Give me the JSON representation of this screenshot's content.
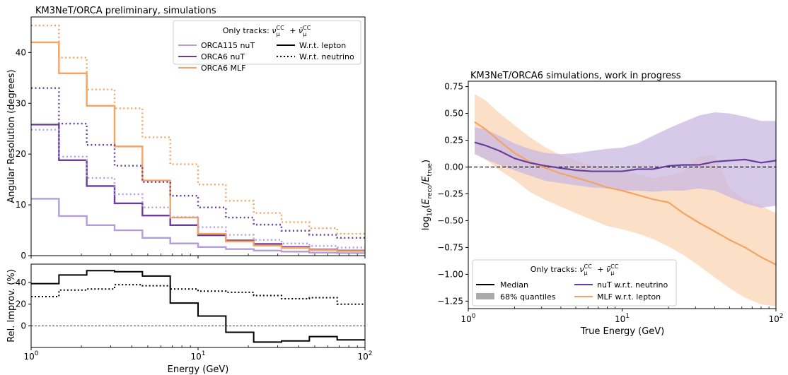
{
  "colors": {
    "orca115": "#b39ddb",
    "orca6_nut": "#6a3d9a",
    "orca6_mlf": "#f4a460",
    "black": "#000000",
    "band_purple": "#c9b8e0",
    "band_orange": "#fbd9bd"
  },
  "chart_data": [
    {
      "type": "line",
      "id": "left-top",
      "title": "KM3NeT/ORCA preliminary, simulations",
      "ylabel": "Angular Resolution (degrees)",
      "xscale": "log",
      "xlim": [
        1,
        100
      ],
      "ylim": [
        0,
        47
      ],
      "yticks": [
        0,
        10,
        20,
        30,
        40
      ],
      "bin_edges": [
        1,
        1.468,
        2.154,
        3.162,
        4.642,
        6.813,
        10,
        14.68,
        21.54,
        31.62,
        46.42,
        68.13,
        100
      ],
      "legend": {
        "title": "Only tracks: ν_μ^CC + ν̄_μ^CC",
        "entries": [
          "ORCA115 nuT",
          "ORCA6 nuT",
          "ORCA6 MLF",
          "W.r.t. lepton",
          "W.r.t. neutrino"
        ],
        "placement": "top-right"
      },
      "series": [
        {
          "color": "orca115",
          "dash": false,
          "values": [
            11.2,
            7.8,
            6.0,
            5.0,
            3.5,
            2.4,
            1.7,
            1.3,
            1.0,
            0.8,
            0.6,
            0.5
          ]
        },
        {
          "color": "orca6_nut",
          "dash": false,
          "values": [
            25.8,
            18.8,
            13.7,
            10.3,
            7.9,
            6.0,
            4.0,
            3.0,
            2.3,
            1.7,
            1.2,
            1.0
          ]
        },
        {
          "color": "orca6_mlf",
          "dash": false,
          "values": [
            42.0,
            35.9,
            29.5,
            21.5,
            14.8,
            7.5,
            4.3,
            2.8,
            2.0,
            1.5,
            1.1,
            0.9
          ]
        },
        {
          "color": "orca115",
          "dash": true,
          "values": [
            24.8,
            19.5,
            15.3,
            12.1,
            9.5,
            7.6,
            5.6,
            4.1,
            3.1,
            2.4,
            1.9,
            1.6
          ]
        },
        {
          "color": "orca6_nut",
          "dash": true,
          "values": [
            33.0,
            26.0,
            21.8,
            17.7,
            14.5,
            11.8,
            9.5,
            7.5,
            6.1,
            4.9,
            4.1,
            3.5
          ]
        },
        {
          "color": "orca6_mlf",
          "dash": true,
          "values": [
            45.3,
            39.0,
            32.7,
            29.0,
            23.3,
            18.0,
            14.0,
            10.8,
            8.4,
            6.6,
            5.4,
            4.3
          ]
        }
      ]
    },
    {
      "type": "line",
      "id": "left-bottom",
      "xlabel": "Energy (GeV)",
      "ylabel": "Rel. Improv. (%)",
      "xscale": "log",
      "xlim": [
        1,
        100
      ],
      "ylim": [
        -20,
        57
      ],
      "yticks": [
        0,
        20,
        40
      ],
      "xticks": [
        "10^0",
        "10^1",
        "10^2"
      ],
      "bin_edges": [
        1,
        1.468,
        2.154,
        3.162,
        4.642,
        6.813,
        10,
        14.68,
        21.54,
        31.62,
        46.42,
        68.13,
        100
      ],
      "series": [
        {
          "color": "black",
          "dash": false,
          "values": [
            39,
            47,
            51,
            50,
            46,
            21,
            9,
            -6,
            -15,
            -14,
            -10,
            -13
          ]
        },
        {
          "color": "black",
          "dash": true,
          "values": [
            27,
            33,
            34,
            38,
            37,
            34,
            32,
            31,
            28,
            25,
            26,
            20
          ]
        }
      ],
      "reference_line": 0
    },
    {
      "type": "area",
      "id": "right",
      "title": "KM3NeT/ORCA6 simulations, work in progress",
      "xlabel": "True Energy (GeV)",
      "ylabel": "log10(E_reco/E_true)",
      "xscale": "log",
      "xlim": [
        1,
        100
      ],
      "ylim": [
        -1.32,
        0.8
      ],
      "yticks": [
        -1.25,
        -1.0,
        -0.75,
        -0.5,
        -0.25,
        0.0,
        0.25,
        0.5,
        0.75
      ],
      "ytick_labels": [
        "−1.25",
        "−1.00",
        "−0.75",
        "−0.50",
        "−0.25",
        "0.00",
        "0.25",
        "0.50",
        "0.75"
      ],
      "xticks": [
        "10^0",
        "10^1",
        "10^2"
      ],
      "reference_line": 0,
      "legend": {
        "title": "Only tracks: ν_μ^CC + ν̄_μ^CC",
        "entries": [
          "Median",
          "68% quantiles",
          "nuT w.r.t. neutrino",
          "MLF w.r.t. lepton"
        ],
        "placement": "lower-left"
      },
      "x": [
        1.1,
        1.3,
        1.6,
        2.0,
        2.5,
        3.2,
        4.0,
        5.0,
        6.3,
        8.0,
        10,
        12.6,
        15.8,
        20,
        25,
        31.6,
        40,
        50,
        63,
        80,
        100
      ],
      "series": [
        {
          "color": "orca6_nut",
          "median": [
            0.23,
            0.2,
            0.15,
            0.08,
            0.04,
            0.01,
            -0.01,
            -0.03,
            -0.04,
            -0.04,
            -0.04,
            -0.02,
            -0.02,
            0.01,
            0.02,
            0.02,
            0.05,
            0.06,
            0.07,
            0.04,
            0.06
          ],
          "upper": [
            0.37,
            0.35,
            0.29,
            0.22,
            0.17,
            0.13,
            0.12,
            0.13,
            0.15,
            0.17,
            0.18,
            0.22,
            0.29,
            0.36,
            0.42,
            0.48,
            0.51,
            0.5,
            0.47,
            0.43,
            0.43
          ],
          "lower": [
            0.12,
            0.07,
            0.02,
            -0.03,
            -0.08,
            -0.13,
            -0.15,
            -0.17,
            -0.19,
            -0.2,
            -0.22,
            -0.22,
            -0.23,
            -0.22,
            -0.22,
            -0.2,
            -0.22,
            -0.28,
            -0.34,
            -0.38,
            -0.36
          ]
        },
        {
          "color": "orca6_mlf",
          "median": [
            0.42,
            0.35,
            0.24,
            0.13,
            0.05,
            -0.01,
            -0.06,
            -0.1,
            -0.14,
            -0.19,
            -0.22,
            -0.26,
            -0.3,
            -0.33,
            -0.43,
            -0.52,
            -0.6,
            -0.68,
            -0.75,
            -0.84,
            -0.91
          ],
          "upper": [
            0.68,
            0.62,
            0.5,
            0.39,
            0.28,
            0.18,
            0.11,
            0.06,
            0.02,
            0.0,
            -0.03,
            -0.07,
            -0.1,
            -0.08,
            -0.04,
            0.1,
            0.11,
            -0.2,
            -0.3,
            -0.36,
            -0.43
          ],
          "lower": [
            0.14,
            0.07,
            -0.03,
            -0.12,
            -0.23,
            -0.31,
            -0.37,
            -0.43,
            -0.49,
            -0.55,
            -0.58,
            -0.62,
            -0.67,
            -0.74,
            -0.82,
            -0.92,
            -1.03,
            -1.13,
            -1.22,
            -1.28,
            -1.3
          ]
        }
      ]
    }
  ]
}
